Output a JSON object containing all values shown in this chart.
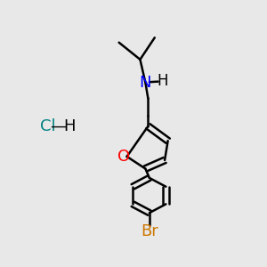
{
  "bg_color": "#e8e8e8",
  "bond_color": "#000000",
  "N_color": "#0000ff",
  "O_color": "#ff0000",
  "Br_color": "#cc7700",
  "Cl_color": "#008080",
  "line_width": 1.8,
  "font_size": 13,
  "fig_width": 3.0,
  "fig_height": 3.0,
  "dpi": 100,
  "xlim": [
    0,
    1
  ],
  "ylim": [
    -0.12,
    0.97
  ]
}
